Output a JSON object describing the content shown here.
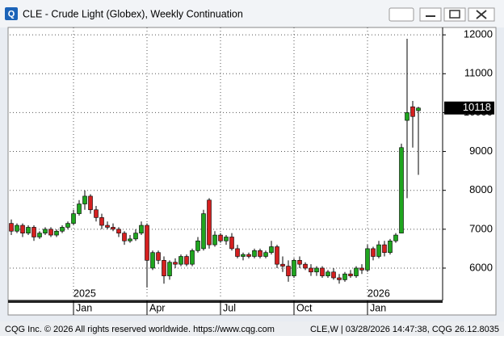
{
  "chart_data": {
    "type": "candlestick",
    "title": "CLE - Crude Light (Globex), Weekly Continuation",
    "categories": [
      null,
      null,
      null,
      null,
      null,
      null,
      null,
      null,
      null,
      null,
      null,
      "Jan",
      null,
      null,
      null,
      null,
      null,
      null,
      null,
      null,
      null,
      null,
      null,
      null,
      "Apr",
      null,
      null,
      null,
      null,
      null,
      null,
      null,
      null,
      null,
      null,
      null,
      null,
      "Jul",
      null,
      null,
      null,
      null,
      null,
      null,
      null,
      null,
      null,
      null,
      null,
      null,
      "Oct",
      null,
      null,
      null,
      null,
      null,
      null,
      null,
      null,
      null,
      null,
      null,
      null,
      "Jan",
      null,
      null,
      null,
      null,
      null,
      null,
      null,
      null,
      null
    ],
    "year_labels": [
      null,
      null,
      null,
      null,
      null,
      null,
      null,
      null,
      null,
      null,
      null,
      "2025",
      null,
      null,
      null,
      null,
      null,
      null,
      null,
      null,
      null,
      null,
      null,
      null,
      null,
      null,
      null,
      null,
      null,
      null,
      null,
      null,
      null,
      null,
      null,
      null,
      null,
      null,
      null,
      null,
      null,
      null,
      null,
      null,
      null,
      null,
      null,
      null,
      null,
      null,
      null,
      null,
      null,
      null,
      null,
      null,
      null,
      null,
      null,
      null,
      null,
      null,
      null,
      "2026",
      null,
      null,
      null,
      null,
      null,
      null,
      null,
      null,
      null
    ],
    "open": [
      7150,
      6950,
      7100,
      6900,
      7050,
      6800,
      6900,
      7000,
      6850,
      6950,
      7050,
      7150,
      7400,
      7650,
      7850,
      7500,
      7300,
      7100,
      7050,
      7000,
      6900,
      6700,
      6750,
      6900,
      7100,
      6000,
      6400,
      6200,
      5800,
      6150,
      6100,
      6300,
      6100,
      6450,
      6500,
      7750,
      6600,
      6850,
      6700,
      6800,
      6500,
      6300,
      6350,
      6300,
      6450,
      6300,
      6400,
      6550,
      6100,
      6050,
      5800,
      6200,
      6100,
      6000,
      5900,
      6000,
      5800,
      5900,
      5750,
      5700,
      5850,
      5800,
      6000,
      5950,
      6500,
      6300,
      6600,
      6400,
      6700,
      6900,
      9800,
      10150,
      10050
    ],
    "high": [
      7250,
      7150,
      7150,
      7100,
      7100,
      6950,
      7050,
      7050,
      7000,
      7100,
      7200,
      7500,
      7750,
      8000,
      7900,
      7600,
      7400,
      7200,
      7150,
      7050,
      6950,
      6850,
      7000,
      7200,
      7150,
      6450,
      6450,
      6300,
      6200,
      6250,
      6350,
      6350,
      6500,
      6800,
      7500,
      7800,
      6950,
      6900,
      6850,
      6900,
      6600,
      6400,
      6400,
      6500,
      6500,
      6450,
      6700,
      6600,
      6300,
      6200,
      6250,
      6300,
      6150,
      6100,
      6050,
      6050,
      5950,
      6000,
      5850,
      5900,
      5950,
      6050,
      6100,
      6600,
      6550,
      6700,
      6700,
      6750,
      6900,
      9200,
      11900,
      10300,
      10150
    ],
    "low": [
      6850,
      6900,
      6800,
      6850,
      6700,
      6750,
      6850,
      6800,
      6800,
      6900,
      7000,
      7100,
      7350,
      7500,
      7400,
      7200,
      7000,
      7000,
      6950,
      6800,
      6600,
      6650,
      6700,
      6850,
      5500,
      5950,
      6100,
      5600,
      5700,
      6000,
      6050,
      6050,
      6050,
      6400,
      6450,
      6500,
      6550,
      6650,
      6600,
      6450,
      6250,
      6200,
      6250,
      6250,
      6250,
      6250,
      6350,
      6000,
      5900,
      5650,
      5750,
      6000,
      5950,
      5800,
      5800,
      5750,
      5750,
      5700,
      5600,
      5650,
      5750,
      5750,
      5850,
      5900,
      6200,
      6250,
      6300,
      6350,
      6650,
      6900,
      7800,
      9100,
      8400
    ],
    "close": [
      6950,
      7100,
      6900,
      7050,
      6800,
      6900,
      7000,
      6850,
      6950,
      7050,
      7150,
      7400,
      7650,
      7850,
      7500,
      7300,
      7100,
      7050,
      7000,
      6900,
      6700,
      6750,
      6900,
      7100,
      6200,
      6400,
      6200,
      5800,
      6150,
      6100,
      6300,
      6100,
      6450,
      6700,
      7400,
      6600,
      6850,
      6700,
      6800,
      6500,
      6300,
      6350,
      6300,
      6450,
      6300,
      6400,
      6550,
      6100,
      6050,
      5800,
      6200,
      6100,
      6000,
      5900,
      6000,
      5800,
      5900,
      5750,
      5700,
      5850,
      5800,
      6000,
      5950,
      6500,
      6300,
      6600,
      6400,
      6700,
      6850,
      9100,
      10000,
      9900,
      10118
    ],
    "up_color": "#1fa51f",
    "down_color": "#d42020",
    "ylim": [
      5210,
      12190
    ],
    "yticks": [
      6000,
      7000,
      8000,
      9000,
      10000,
      11000,
      12000
    ],
    "grid": true
  },
  "footer": {
    "left": "CQG Inc. © 2026 All rights reserved worldwide. https://www.cqg.com",
    "right": "CLE,W | 03/28/2026 14:47:38, CQG 26.12.8035"
  }
}
